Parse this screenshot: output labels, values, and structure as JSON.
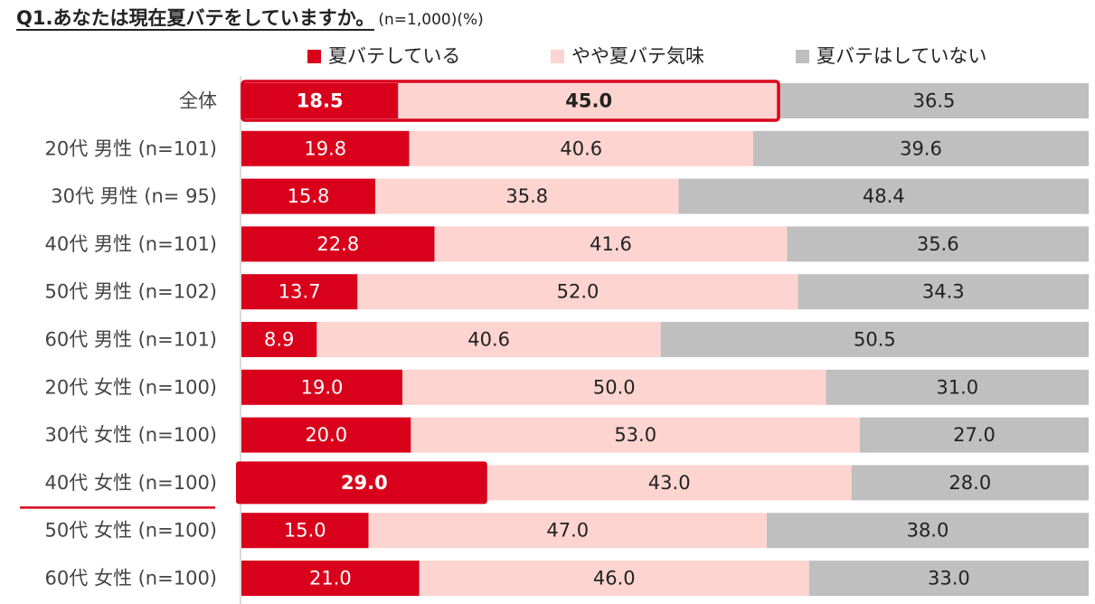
{
  "header": {
    "question": "Q1.あなたは現在夏バテをしていますか。",
    "sample_note": "(n=1,000)(%)"
  },
  "chart_data": {
    "type": "bar",
    "orientation": "horizontal",
    "stacked": "100%",
    "title": "Q1.あなたは現在夏バテをしていますか。",
    "unit": "%",
    "legend_position": "top",
    "xlim": [
      0,
      100
    ],
    "categories": [
      "全体",
      "20代 男性 (n=101)",
      "30代 男性 (n=  95)",
      "40代 男性 (n=101)",
      "50代 男性 (n=102)",
      "60代 男性 (n=101)",
      "20代 女性 (n=100)",
      "30代 女性 (n=100)",
      "40代 女性 (n=100)",
      "50代 女性 (n=100)",
      "60代 女性 (n=100)"
    ],
    "series": [
      {
        "name": "夏バテしている",
        "color": "#d9001b",
        "label_color": "#ffffff",
        "values": [
          18.5,
          19.8,
          15.8,
          22.8,
          13.7,
          8.9,
          19.0,
          20.0,
          29.0,
          15.0,
          21.0
        ],
        "labels": [
          "18.5",
          "19.8",
          "15.8",
          "22.8",
          "13.7",
          "8.9",
          "19.0",
          "20.0",
          "29.0",
          "15.0",
          "21.0"
        ]
      },
      {
        "name": "やや夏バテ気味",
        "color": "#fdd4d0",
        "label_color": "#222222",
        "values": [
          45.0,
          40.6,
          35.8,
          41.6,
          52.0,
          40.6,
          50.0,
          53.0,
          43.0,
          47.0,
          46.0
        ],
        "labels": [
          "45.0",
          "40.6",
          "35.8",
          "41.6",
          "52.0",
          "40.6",
          "50.0",
          "53.0",
          "43.0",
          "47.0",
          "46.0"
        ]
      },
      {
        "name": "夏バテはしていない",
        "color": "#bfbfbf",
        "label_color": "#222222",
        "values": [
          36.5,
          39.6,
          48.4,
          35.6,
          34.3,
          50.5,
          31.0,
          27.0,
          28.0,
          38.0,
          33.0
        ],
        "labels": [
          "36.5",
          "39.6",
          "48.4",
          "35.6",
          "34.3",
          "50.5",
          "31.0",
          "27.0",
          "28.0",
          "38.0",
          "33.0"
        ]
      }
    ],
    "highlights": {
      "total_row_outline_series": [
        "夏バテしている",
        "やや夏バテ気味"
      ],
      "emphasized_row": "40代 女性 (n=100)",
      "outline_color": "#d9001b"
    }
  }
}
